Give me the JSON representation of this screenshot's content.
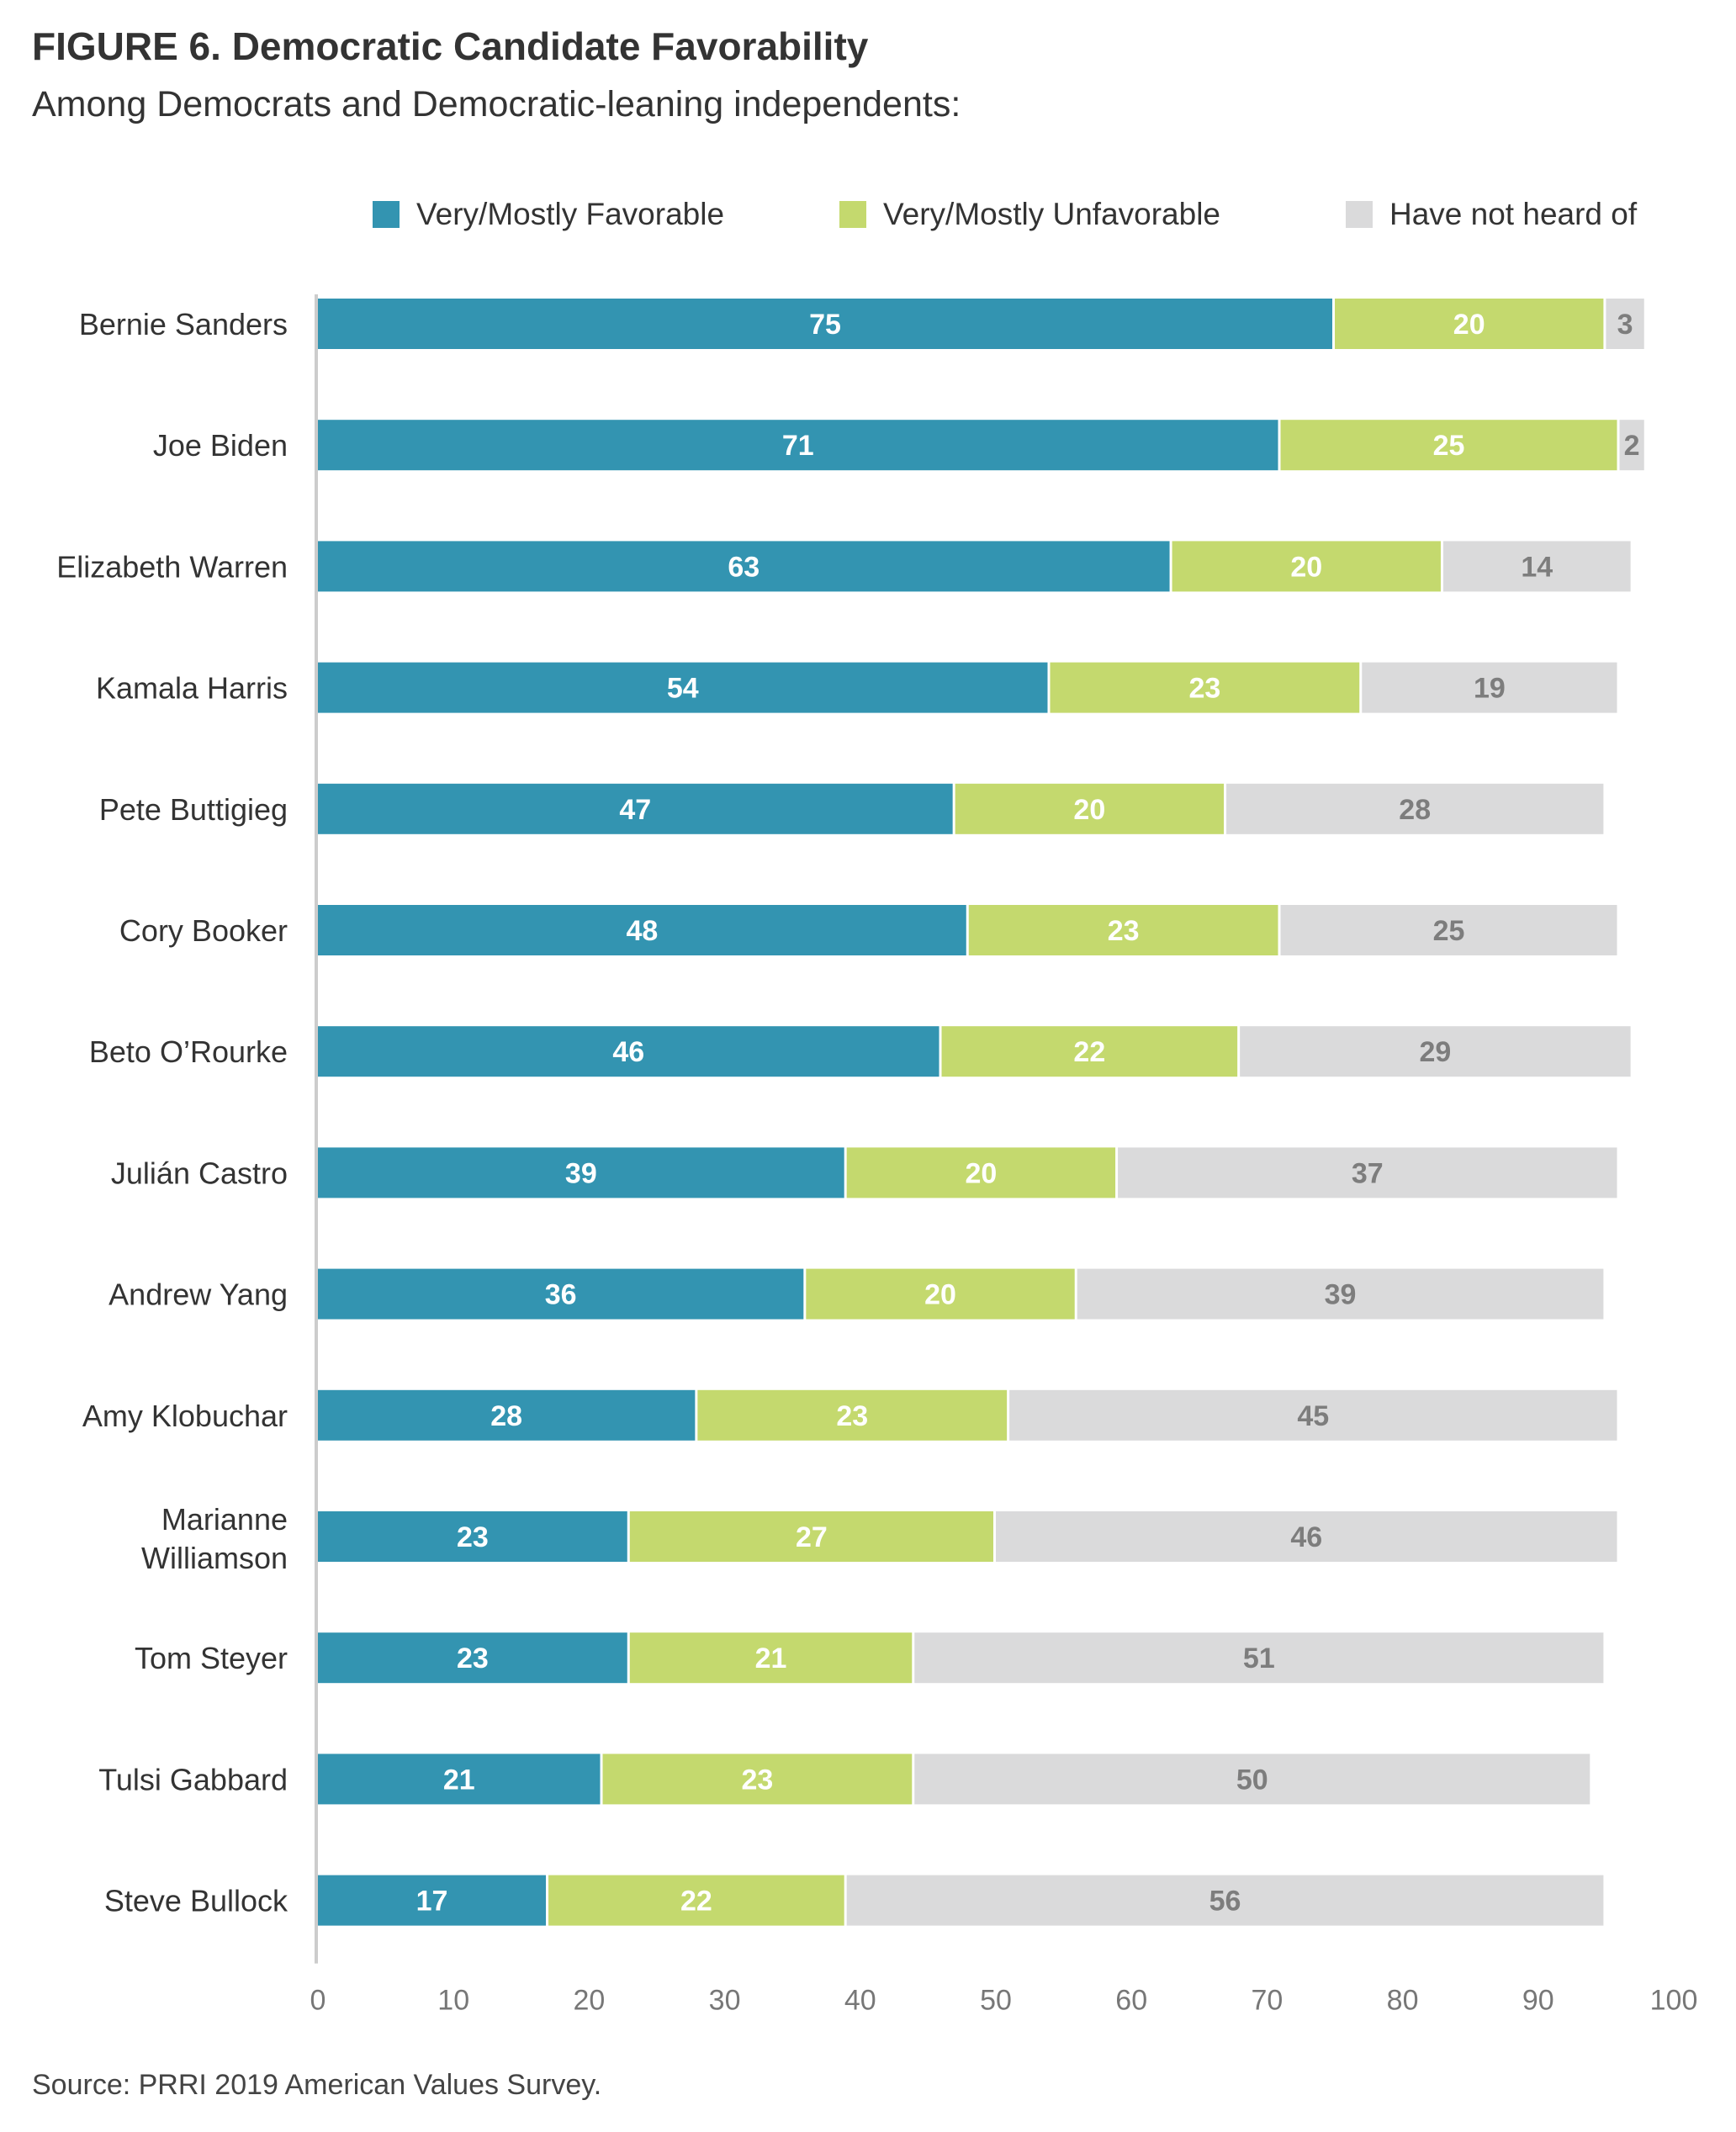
{
  "title": "FIGURE 6. Democratic Candidate Favorability",
  "subtitle": "Among Democrats and Democratic-leaning independents:",
  "source": "Source: PRRI 2019 American Values Survey.",
  "colors": {
    "favorable": "#3394b1",
    "unfavorable": "#c4d96e",
    "not_heard": "#dadadb"
  },
  "chart_data": {
    "type": "bar",
    "orientation": "horizontal",
    "stacked": true,
    "legend_position": "top",
    "grid": false,
    "xlim": [
      0,
      100
    ],
    "x_ticks": [
      0,
      10,
      20,
      30,
      40,
      50,
      60,
      70,
      80,
      90,
      100
    ],
    "categories": [
      "Bernie Sanders",
      "Joe Biden",
      "Elizabeth Warren",
      "Kamala Harris",
      "Pete Buttigieg",
      "Cory Booker",
      "Beto O’Rourke",
      "Julián Castro",
      "Andrew Yang",
      "Amy Klobuchar",
      "Marianne Williamson",
      "Tom Steyer",
      "Tulsi Gabbard",
      "Steve Bullock"
    ],
    "series": [
      {
        "name": "Very/Mostly Favorable",
        "color": "#3394b1",
        "values": [
          75,
          71,
          63,
          54,
          47,
          48,
          46,
          39,
          36,
          28,
          23,
          23,
          21,
          17
        ]
      },
      {
        "name": "Very/Mostly Unfavorable",
        "color": "#c4d96e",
        "values": [
          20,
          25,
          20,
          23,
          20,
          23,
          22,
          20,
          20,
          23,
          27,
          21,
          23,
          22
        ]
      },
      {
        "name": "Have not heard of",
        "color": "#dadadb",
        "values": [
          3,
          2,
          14,
          19,
          28,
          25,
          29,
          37,
          39,
          45,
          46,
          51,
          50,
          56
        ]
      }
    ]
  }
}
